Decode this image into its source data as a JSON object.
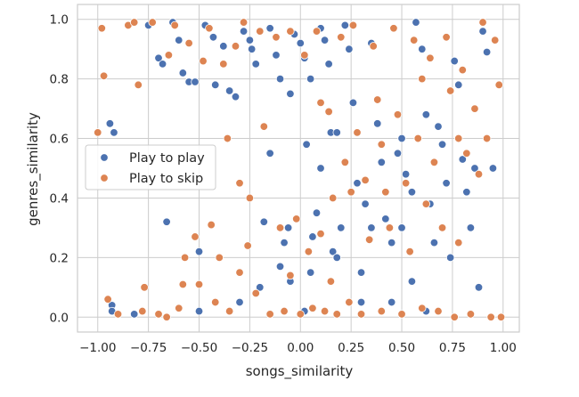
{
  "chart_data": {
    "type": "scatter",
    "xlabel": "songs_similarity",
    "ylabel": "genres_similarity",
    "xlim": [
      -1.1,
      1.08
    ],
    "ylim": [
      -0.05,
      1.05
    ],
    "x_ticks": [
      "−1.00",
      "−0.75",
      "−0.50",
      "−0.25",
      "0.00",
      "0.25",
      "0.50",
      "0.75",
      "1.00"
    ],
    "x_tick_values": [
      -1.0,
      -0.75,
      -0.5,
      -0.25,
      0.0,
      0.25,
      0.5,
      0.75,
      1.0
    ],
    "y_ticks": [
      "0.0",
      "0.2",
      "0.4",
      "0.6",
      "0.8",
      "1.0"
    ],
    "y_tick_values": [
      0.0,
      0.2,
      0.4,
      0.6,
      0.8,
      1.0
    ],
    "grid": true,
    "legend_position": "center-left",
    "series": [
      {
        "name": "Play to play",
        "color": "#4c72b0",
        "points": [
          [
            -0.94,
            0.65
          ],
          [
            -0.92,
            0.62
          ],
          [
            -0.93,
            0.04
          ],
          [
            -0.93,
            0.02
          ],
          [
            -0.82,
            0.01
          ],
          [
            -0.75,
            0.98
          ],
          [
            -0.7,
            0.87
          ],
          [
            -0.68,
            0.85
          ],
          [
            -0.66,
            0.32
          ],
          [
            -0.63,
            0.99
          ],
          [
            -0.6,
            0.93
          ],
          [
            -0.58,
            0.82
          ],
          [
            -0.55,
            0.79
          ],
          [
            -0.52,
            0.79
          ],
          [
            -0.5,
            0.22
          ],
          [
            -0.5,
            0.02
          ],
          [
            -0.47,
            0.98
          ],
          [
            -0.43,
            0.94
          ],
          [
            -0.42,
            0.78
          ],
          [
            -0.38,
            0.91
          ],
          [
            -0.35,
            0.76
          ],
          [
            -0.32,
            0.74
          ],
          [
            -0.3,
            0.05
          ],
          [
            -0.28,
            0.96
          ],
          [
            -0.25,
            0.93
          ],
          [
            -0.24,
            0.9
          ],
          [
            -0.22,
            0.85
          ],
          [
            -0.2,
            0.1
          ],
          [
            -0.18,
            0.32
          ],
          [
            -0.15,
            0.97
          ],
          [
            -0.12,
            0.88
          ],
          [
            -0.1,
            0.8
          ],
          [
            -0.08,
            0.25
          ],
          [
            -0.06,
            0.3
          ],
          [
            -0.05,
            0.12
          ],
          [
            -0.03,
            0.95
          ],
          [
            0.0,
            0.92
          ],
          [
            0.02,
            0.87
          ],
          [
            0.03,
            0.58
          ],
          [
            0.05,
            0.15
          ],
          [
            0.06,
            0.27
          ],
          [
            0.08,
            0.35
          ],
          [
            0.1,
            0.97
          ],
          [
            0.12,
            0.93
          ],
          [
            0.14,
            0.85
          ],
          [
            0.15,
            0.62
          ],
          [
            0.16,
            0.22
          ],
          [
            0.18,
            0.2
          ],
          [
            0.2,
            0.3
          ],
          [
            0.22,
            0.98
          ],
          [
            0.24,
            0.9
          ],
          [
            0.26,
            0.72
          ],
          [
            0.28,
            0.45
          ],
          [
            0.3,
            0.05
          ],
          [
            0.32,
            0.38
          ],
          [
            0.35,
            0.92
          ],
          [
            0.38,
            0.65
          ],
          [
            0.4,
            0.52
          ],
          [
            0.42,
            0.33
          ],
          [
            0.45,
            0.25
          ],
          [
            0.48,
            0.55
          ],
          [
            0.5,
            0.6
          ],
          [
            0.52,
            0.48
          ],
          [
            0.55,
            0.42
          ],
          [
            0.57,
            0.99
          ],
          [
            0.6,
            0.9
          ],
          [
            0.62,
            0.68
          ],
          [
            0.64,
            0.38
          ],
          [
            0.66,
            0.25
          ],
          [
            0.68,
            0.64
          ],
          [
            0.7,
            0.58
          ],
          [
            0.72,
            0.45
          ],
          [
            0.74,
            0.2
          ],
          [
            0.76,
            0.86
          ],
          [
            0.78,
            0.78
          ],
          [
            0.8,
            0.53
          ],
          [
            0.82,
            0.42
          ],
          [
            0.84,
            0.3
          ],
          [
            0.86,
            0.5
          ],
          [
            0.88,
            0.1
          ],
          [
            0.9,
            0.96
          ],
          [
            0.92,
            0.89
          ],
          [
            0.95,
            0.5
          ],
          [
            -0.15,
            0.55
          ],
          [
            0.1,
            0.5
          ],
          [
            0.3,
            0.15
          ],
          [
            0.45,
            0.05
          ],
          [
            0.55,
            0.12
          ],
          [
            0.62,
            0.02
          ],
          [
            0.02,
            0.02
          ],
          [
            -0.1,
            0.17
          ],
          [
            0.18,
            0.62
          ],
          [
            0.35,
            0.3
          ],
          [
            0.5,
            0.3
          ],
          [
            0.05,
            0.8
          ],
          [
            -0.05,
            0.75
          ]
        ]
      },
      {
        "name": "Play to skip",
        "color": "#dd8452",
        "points": [
          [
            -1.0,
            0.62
          ],
          [
            -0.98,
            0.97
          ],
          [
            -0.97,
            0.81
          ],
          [
            -0.95,
            0.06
          ],
          [
            -0.9,
            0.01
          ],
          [
            -0.85,
            0.98
          ],
          [
            -0.82,
            0.99
          ],
          [
            -0.8,
            0.78
          ],
          [
            -0.78,
            0.02
          ],
          [
            -0.77,
            0.1
          ],
          [
            -0.73,
            0.99
          ],
          [
            -0.7,
            0.01
          ],
          [
            -0.65,
            0.88
          ],
          [
            -0.62,
            0.98
          ],
          [
            -0.6,
            0.03
          ],
          [
            -0.57,
            0.2
          ],
          [
            -0.55,
            0.92
          ],
          [
            -0.52,
            0.27
          ],
          [
            -0.5,
            0.11
          ],
          [
            -0.48,
            0.86
          ],
          [
            -0.45,
            0.97
          ],
          [
            -0.42,
            0.05
          ],
          [
            -0.4,
            0.2
          ],
          [
            -0.38,
            0.85
          ],
          [
            -0.36,
            0.6
          ],
          [
            -0.35,
            0.02
          ],
          [
            -0.32,
            0.91
          ],
          [
            -0.3,
            0.15
          ],
          [
            -0.28,
            0.99
          ],
          [
            -0.25,
            0.4
          ],
          [
            -0.22,
            0.08
          ],
          [
            -0.2,
            0.96
          ],
          [
            -0.18,
            0.64
          ],
          [
            -0.15,
            0.01
          ],
          [
            -0.12,
            0.94
          ],
          [
            -0.1,
            0.3
          ],
          [
            -0.08,
            0.02
          ],
          [
            -0.05,
            0.96
          ],
          [
            -0.02,
            0.33
          ],
          [
            0.0,
            0.01
          ],
          [
            0.02,
            0.88
          ],
          [
            0.04,
            0.22
          ],
          [
            0.06,
            0.03
          ],
          [
            0.08,
            0.96
          ],
          [
            0.1,
            0.28
          ],
          [
            0.12,
            0.02
          ],
          [
            0.14,
            0.69
          ],
          [
            0.16,
            0.4
          ],
          [
            0.18,
            0.01
          ],
          [
            0.2,
            0.94
          ],
          [
            0.22,
            0.52
          ],
          [
            0.24,
            0.05
          ],
          [
            0.26,
            0.98
          ],
          [
            0.28,
            0.62
          ],
          [
            0.3,
            0.01
          ],
          [
            0.32,
            0.46
          ],
          [
            0.34,
            0.26
          ],
          [
            0.36,
            0.91
          ],
          [
            0.38,
            0.73
          ],
          [
            0.4,
            0.02
          ],
          [
            0.42,
            0.42
          ],
          [
            0.44,
            0.3
          ],
          [
            0.46,
            0.97
          ],
          [
            0.48,
            0.68
          ],
          [
            0.5,
            0.01
          ],
          [
            0.52,
            0.45
          ],
          [
            0.54,
            0.22
          ],
          [
            0.56,
            0.93
          ],
          [
            0.58,
            0.6
          ],
          [
            0.6,
            0.03
          ],
          [
            0.62,
            0.38
          ],
          [
            0.64,
            0.87
          ],
          [
            0.66,
            0.52
          ],
          [
            0.68,
            0.02
          ],
          [
            0.7,
            0.3
          ],
          [
            0.72,
            0.94
          ],
          [
            0.74,
            0.76
          ],
          [
            0.76,
            0.0
          ],
          [
            0.78,
            0.25
          ],
          [
            0.8,
            0.83
          ],
          [
            0.82,
            0.55
          ],
          [
            0.84,
            0.01
          ],
          [
            0.86,
            0.7
          ],
          [
            0.88,
            0.48
          ],
          [
            0.9,
            0.99
          ],
          [
            0.92,
            0.6
          ],
          [
            0.94,
            0.0
          ],
          [
            0.96,
            0.93
          ],
          [
            0.98,
            0.78
          ],
          [
            0.99,
            0.0
          ],
          [
            -0.66,
            0.0
          ],
          [
            -0.58,
            0.11
          ],
          [
            -0.44,
            0.31
          ],
          [
            -0.26,
            0.24
          ],
          [
            0.1,
            0.72
          ],
          [
            0.4,
            0.58
          ],
          [
            0.6,
            0.8
          ],
          [
            0.78,
            0.6
          ],
          [
            -0.3,
            0.45
          ],
          [
            0.25,
            0.42
          ],
          [
            0.15,
            0.12
          ],
          [
            -0.05,
            0.14
          ]
        ]
      }
    ]
  }
}
